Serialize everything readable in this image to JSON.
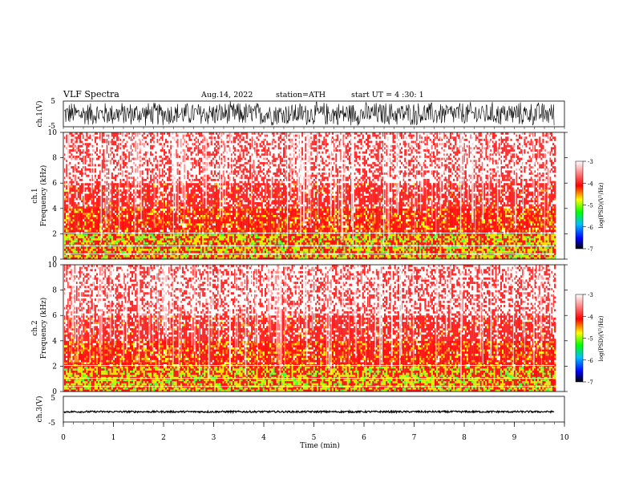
{
  "header": {
    "title": "VLF Spectra",
    "date": "Aug.14, 2022",
    "station": "station=ATH",
    "start": "start UT = 4 :30: 1"
  },
  "colors": {
    "background": "#ffffff",
    "spectrogram_dominant": "#ff2a2a",
    "waveform": "#000000"
  },
  "chart_data": [
    {
      "type": "line",
      "ylabel": "ch.1(V)",
      "ylim": [
        -5,
        5
      ],
      "y_ticks": [
        "5",
        "-5"
      ],
      "x_range_min": [
        0,
        9.8
      ],
      "description_values": "dense broadband noise trace spanning roughly -5 to 5 V"
    },
    {
      "type": "heatmap",
      "ylabel": [
        "ch.1",
        "Frequency (kHz)"
      ],
      "ylim": [
        0,
        10
      ],
      "y_ticks": [
        "0",
        "2",
        "4",
        "6",
        "8",
        "10"
      ],
      "x_range_min": [
        0,
        9.8
      ],
      "colorbar": {
        "label": "log(PSD)(V²/Hz)",
        "ticks": [
          "-3",
          "-4",
          "-5",
          "-6",
          "-7"
        ],
        "range": [
          -7,
          -3
        ]
      }
    },
    {
      "type": "heatmap",
      "ylabel": [
        "ch.2",
        "Frequency (kHz)"
      ],
      "ylim": [
        0,
        10
      ],
      "y_ticks": [
        "0",
        "2",
        "4",
        "6",
        "8",
        "10"
      ],
      "x_range_min": [
        0,
        9.8
      ],
      "colorbar": {
        "label": "log(PSD)(V²/Hz)",
        "ticks": [
          "-3",
          "-4",
          "-5",
          "-6",
          "-7"
        ],
        "range": [
          -7,
          -3
        ]
      }
    },
    {
      "type": "line",
      "ylabel": "ch.3(V)",
      "ylim": [
        -5,
        5
      ],
      "y_ticks": [
        "5",
        "-5"
      ],
      "x_range_min": [
        0,
        9.8
      ],
      "description_values": "nearly flat trace near -1 V"
    }
  ],
  "xaxis": {
    "label": "Time (min)",
    "ticks": [
      "0",
      "1",
      "2",
      "3",
      "4",
      "5",
      "6",
      "7",
      "8",
      "9",
      "10"
    ],
    "range": [
      0,
      10
    ]
  }
}
